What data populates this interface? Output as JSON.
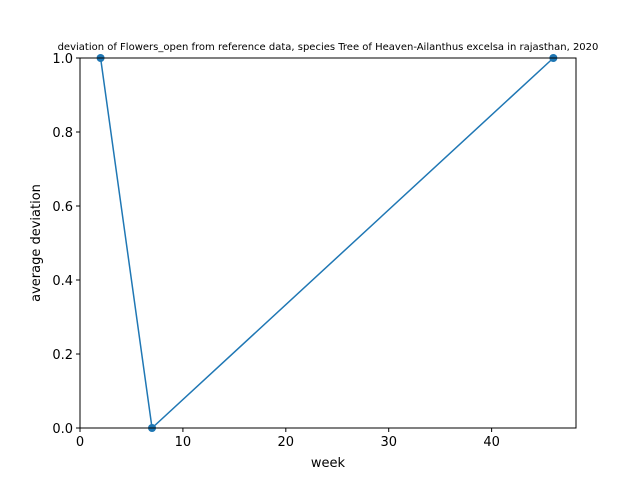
{
  "chart_data": {
    "type": "line",
    "title": "deviation of Flowers_open from reference data, species Tree of Heaven-Ailanthus excelsa in rajasthan, 2020",
    "xlabel": "week",
    "ylabel": "average deviation",
    "xlim": [
      0,
      48.2
    ],
    "ylim": [
      0,
      1.0
    ],
    "xticks": [
      0,
      10,
      20,
      30,
      40
    ],
    "yticks": [
      0.0,
      0.2,
      0.4,
      0.6,
      0.8,
      1.0
    ],
    "xtick_labels": [
      "0",
      "10",
      "20",
      "30",
      "40"
    ],
    "ytick_labels": [
      "0.0",
      "0.2",
      "0.4",
      "0.6",
      "0.8",
      "1.0"
    ],
    "grid": false,
    "legend": "none",
    "series": [
      {
        "x": [
          2,
          7,
          46
        ],
        "y": [
          1.0,
          0.0,
          1.0
        ],
        "color": "#1f77b4",
        "marker": "circle"
      }
    ]
  }
}
